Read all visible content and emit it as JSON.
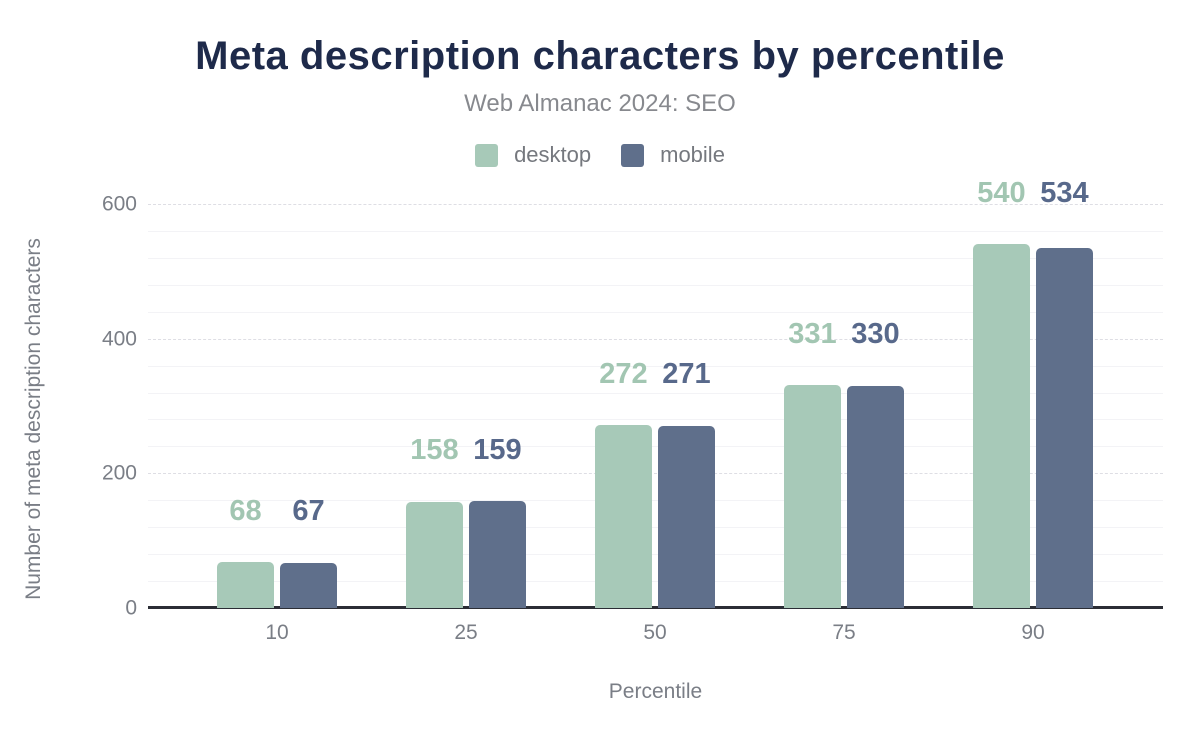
{
  "chart_data": {
    "type": "bar",
    "title": "Meta description characters by percentile",
    "subtitle": "Web Almanac 2024: SEO",
    "xlabel": "Percentile",
    "ylabel": "Number of meta description characters",
    "categories": [
      "10",
      "25",
      "50",
      "75",
      "90"
    ],
    "series": [
      {
        "name": "desktop",
        "color": "#a7c9b8",
        "label_color": "#a2c6b2",
        "values": [
          68,
          158,
          272,
          331,
          540
        ]
      },
      {
        "name": "mobile",
        "color": "#5f6f8b",
        "label_color": "#58698b",
        "values": [
          67,
          159,
          271,
          330,
          534
        ]
      }
    ],
    "ylim": [
      0,
      600
    ],
    "yticks": [
      0,
      200,
      400,
      600
    ],
    "minor_grid_step": 40,
    "grid": true,
    "legend_position": "top"
  },
  "colors": {
    "title": "#1e2a4a",
    "subtitle": "#87898e",
    "axis_text": "#7a7e86",
    "legend_text": "#75787e",
    "axis_line": "#2b2d35",
    "background": "#ffffff"
  }
}
